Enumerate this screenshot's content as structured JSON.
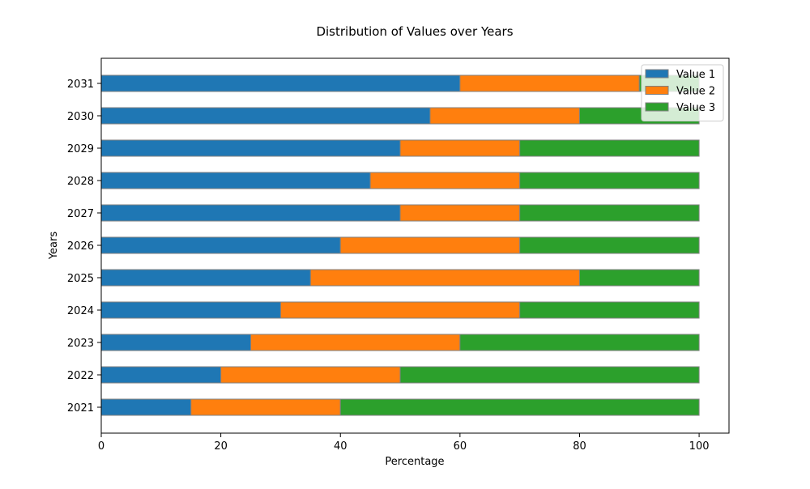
{
  "chart_data": {
    "type": "bar",
    "orientation": "horizontal",
    "stacked": true,
    "title": "Distribution of Values over Years",
    "xlabel": "Percentage",
    "ylabel": "Years",
    "xlim": [
      0,
      105
    ],
    "xticks": [
      0,
      20,
      40,
      60,
      80,
      100
    ],
    "categories": [
      "2021",
      "2022",
      "2023",
      "2024",
      "2025",
      "2026",
      "2027",
      "2028",
      "2029",
      "2030",
      "2031"
    ],
    "series": [
      {
        "name": "Value 1",
        "color": "#1f77b4",
        "values": [
          15,
          20,
          25,
          30,
          35,
          40,
          50,
          45,
          50,
          55,
          60
        ]
      },
      {
        "name": "Value 2",
        "color": "#ff7f0e",
        "values": [
          25,
          30,
          35,
          40,
          45,
          30,
          20,
          25,
          20,
          25,
          30
        ]
      },
      {
        "name": "Value 3",
        "color": "#2ca02c",
        "values": [
          60,
          50,
          40,
          30,
          20,
          30,
          30,
          30,
          30,
          20,
          10
        ]
      }
    ],
    "bar_edge_color": "#808080",
    "grid": false,
    "legend_position": "top-right"
  }
}
